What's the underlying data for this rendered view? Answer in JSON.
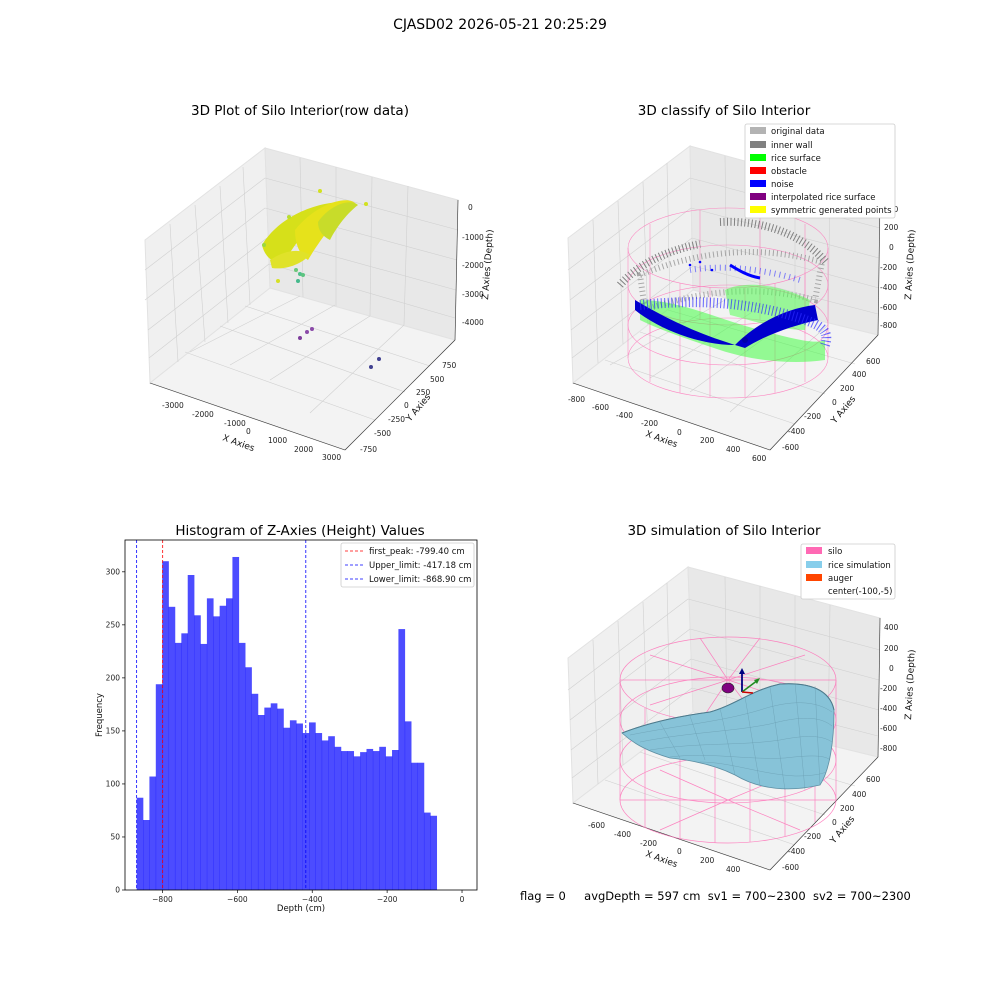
{
  "suptitle": "CJASD02 2026-05-21 20:25:29",
  "panels": {
    "raw": {
      "title": "3D Plot of Silo Interior(row data)",
      "xlabel": "X Axies",
      "ylabel": "Y Axies",
      "zlabel": "Z Axies (Depth)",
      "xticks": [
        "-3000",
        "-2000",
        "-1000",
        "0",
        "1000",
        "2000",
        "3000"
      ],
      "yticks": [
        "-750",
        "-500",
        "-250",
        "0",
        "250",
        "500",
        "750"
      ],
      "zticks": [
        "0",
        "-1000",
        "-2000",
        "-3000",
        "-4000"
      ]
    },
    "classify": {
      "title": "3D classify of Silo Interior",
      "xlabel": "X Axies",
      "ylabel": "Y Axies",
      "zlabel": "Z Axies (Depth)",
      "xticks": [
        "-800",
        "-600",
        "-400",
        "-200",
        "0",
        "200",
        "400",
        "600"
      ],
      "yticks": [
        "-600",
        "-400",
        "-200",
        "0",
        "200",
        "400",
        "600"
      ],
      "zticks": [
        "400",
        "200",
        "0",
        "-200",
        "-400",
        "-600",
        "-800"
      ],
      "legend": [
        {
          "label": "original data",
          "color": "#b3b3b3"
        },
        {
          "label": "inner wall",
          "color": "#808080"
        },
        {
          "label": "rice surface",
          "color": "#00ff00"
        },
        {
          "label": "obstacle",
          "color": "#ff0000"
        },
        {
          "label": "noise",
          "color": "#0000ff"
        },
        {
          "label": "interpolated rice surface",
          "color": "#800080"
        },
        {
          "label": "symmetric generated points",
          "color": "#ffff00"
        }
      ]
    },
    "simulation": {
      "title": "3D simulation of Silo Interior",
      "xlabel": "X Axies",
      "ylabel": "Y Axies",
      "zlabel": "Z Axies (Depth)",
      "xticks": [
        "-600",
        "-400",
        "-200",
        "0",
        "200",
        "400"
      ],
      "yticks": [
        "-600",
        "-400",
        "-200",
        "0",
        "200",
        "400",
        "600"
      ],
      "zticks": [
        "400",
        "200",
        "0",
        "-200",
        "-400",
        "-600",
        "-800"
      ],
      "legend": [
        {
          "label": "silo",
          "color": "#ff69b4"
        },
        {
          "label": "rice simulation",
          "color": "#87ceeb"
        },
        {
          "label": "auger",
          "color": "#ff4500"
        },
        {
          "label": "center(-100,-5)",
          "color": ""
        }
      ]
    },
    "status": {
      "flag": "flag = 0",
      "avg": "avgDepth = 597 cm",
      "sv1": "sv1 = 700~2300",
      "sv2": "sv2 = 700~2300"
    }
  },
  "chart_data": [
    {
      "type": "scatter",
      "title": "3D Plot of Silo Interior(row data)",
      "xlabel": "X Axies",
      "ylabel": "Y Axies",
      "zlabel": "Z Axies (Depth)",
      "xlim": [
        -3500,
        3000
      ],
      "ylim": [
        -900,
        900
      ],
      "zlim": [
        -4500,
        0
      ]
    },
    {
      "type": "scatter",
      "title": "3D classify of Silo Interior",
      "xlabel": "X Axies",
      "ylabel": "Y Axies",
      "zlabel": "Z Axies (Depth)",
      "xlim": [
        -800,
        600
      ],
      "ylim": [
        -700,
        700
      ],
      "zlim": [
        -900,
        400
      ],
      "legend_position": "top-right"
    },
    {
      "type": "bar",
      "title": "Histogram of Z-Axies (Height) Values",
      "xlabel": "Depth (cm)",
      "ylabel": "Frequency",
      "xlim": [
        -900,
        40
      ],
      "ylim": [
        0,
        330
      ],
      "xticks": [
        -800,
        -600,
        -400,
        -200,
        0
      ],
      "yticks": [
        0,
        50,
        100,
        150,
        200,
        250,
        300
      ],
      "bin_start": -868.9,
      "bin_width": 17.05,
      "values": [
        87,
        66,
        107,
        194,
        310,
        267,
        233,
        242,
        297,
        259,
        232,
        275,
        258,
        268,
        275,
        314,
        233,
        210,
        185,
        165,
        172,
        176,
        171,
        153,
        160,
        157,
        148,
        158,
        148,
        141,
        145,
        135,
        131,
        131,
        126,
        130,
        133,
        131,
        135,
        126,
        132,
        246,
        159,
        120,
        120,
        73,
        70
      ],
      "bar_color": "#0000ff",
      "vlines": [
        {
          "label": "first_peak: -799.40 cm",
          "x": -799.4,
          "color": "#ff0000"
        },
        {
          "label": "Upper_limit: -417.18 cm",
          "x": -417.18,
          "color": "#0000ff"
        },
        {
          "label": "Lower_limit: -868.90 cm",
          "x": -868.9,
          "color": "#0000ff"
        }
      ],
      "legend_position": "top-right"
    },
    {
      "type": "surface",
      "title": "3D simulation of Silo Interior",
      "xlabel": "X Axies",
      "ylabel": "Y Axies",
      "zlabel": "Z Axies (Depth)",
      "xlim": [
        -700,
        500
      ],
      "ylim": [
        -700,
        700
      ],
      "zlim": [
        -900,
        500
      ],
      "legend_position": "top-right"
    }
  ]
}
